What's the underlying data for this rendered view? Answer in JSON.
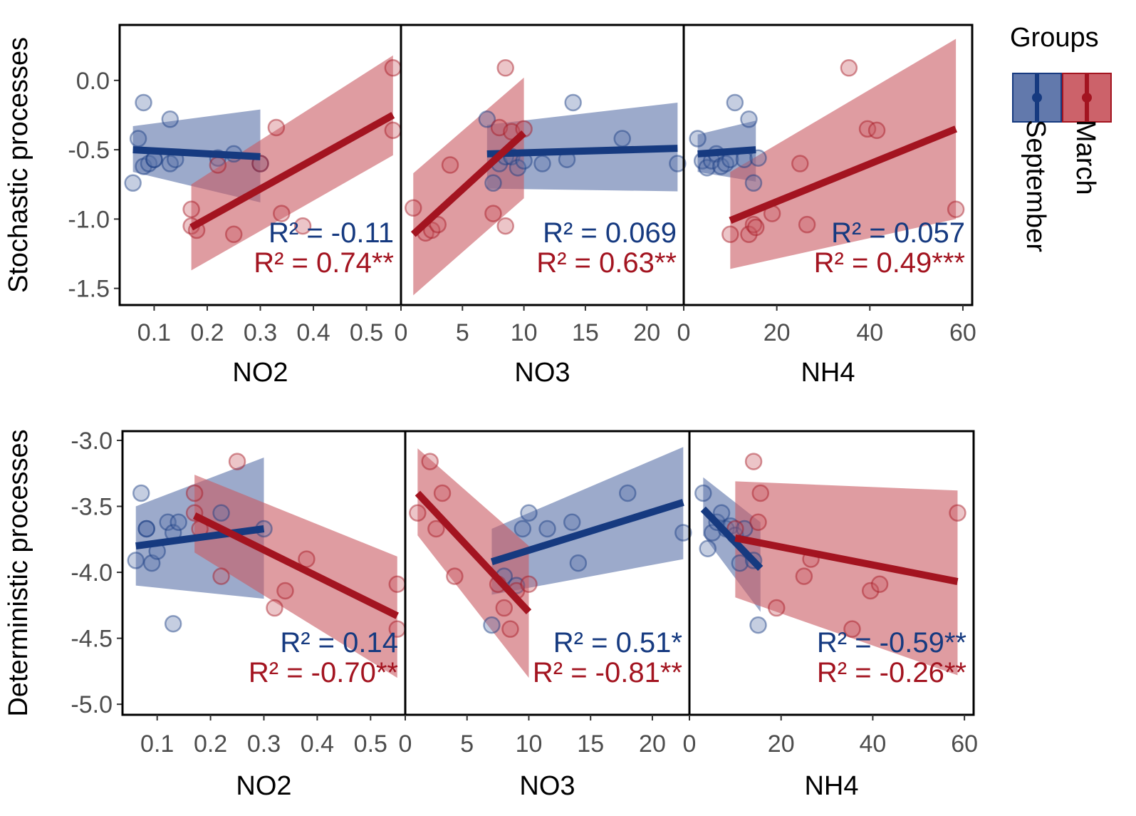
{
  "colors": {
    "September": "#163a80",
    "March": "#a31420",
    "September_fill": "#5a72a8",
    "March_fill": "#c95a62",
    "frame": "#000000"
  },
  "legend": {
    "title": "Groups",
    "entries": [
      "March",
      "September"
    ]
  },
  "chart_data": [
    {
      "type": "scatter",
      "ylabel": "Stochastic processes",
      "ylim": [
        -1.62,
        0.4
      ],
      "yticks": [
        0.0,
        -0.5,
        -1.0,
        -1.5
      ],
      "ytick_labels": [
        "0.0",
        "-0.5",
        "-1.0",
        "-1.5"
      ],
      "panels": [
        {
          "xlabel": "NO2",
          "xlim": [
            0.035,
            0.565
          ],
          "xticks": [
            0.1,
            0.2,
            0.3,
            0.4,
            0.5
          ],
          "xtick_labels": [
            "0.1",
            "0.2",
            "0.3",
            "0.4",
            "0.5"
          ],
          "series": [
            {
              "name": "September",
              "x": [
                0.06,
                0.07,
                0.08,
                0.08,
                0.09,
                0.1,
                0.1,
                0.13,
                0.13,
                0.14,
                0.22,
                0.25,
                0.3
              ],
              "y": [
                -0.74,
                -0.42,
                -0.62,
                -0.16,
                -0.6,
                -0.57,
                -0.57,
                -0.28,
                -0.6,
                -0.57,
                -0.56,
                -0.53,
                -0.6
              ],
              "fit": {
                "x": [
                  0.06,
                  0.3
                ],
                "y": [
                  -0.5,
                  -0.55
                ]
              },
              "band": {
                "x": [
                  0.06,
                  0.3
                ],
                "lower": [
                  -0.66,
                  -0.88
                ],
                "upper": [
                  -0.33,
                  -0.21
                ]
              }
            },
            {
              "name": "March",
              "x": [
                0.17,
                0.17,
                0.18,
                0.22,
                0.25,
                0.3,
                0.33,
                0.34,
                0.38,
                0.55,
                0.55
              ],
              "y": [
                -0.93,
                -1.05,
                -1.08,
                -0.61,
                -1.11,
                -0.6,
                -0.34,
                -0.96,
                -1.05,
                0.09,
                -0.36
              ],
              "fit": {
                "x": [
                  0.17,
                  0.55
                ],
                "y": [
                  -1.06,
                  -0.25
                ]
              },
              "band": {
                "x": [
                  0.17,
                  0.55
                ],
                "lower": [
                  -1.37,
                  -0.54
                ],
                "upper": [
                  -0.75,
                  0.18
                ]
              }
            }
          ],
          "r2": [
            {
              "group": "September",
              "text": "R² = -0.11"
            },
            {
              "group": "March",
              "text": "R² = 0.74**"
            }
          ]
        },
        {
          "xlabel": "NO3",
          "xlim": [
            0,
            23
          ],
          "xticks": [
            0,
            5,
            10,
            15,
            20
          ],
          "xtick_labels": [
            "0",
            "5",
            "10",
            "15",
            "20"
          ],
          "series": [
            {
              "name": "September",
              "x": [
                7,
                7.5,
                8,
                8.5,
                9,
                9.5,
                10,
                11.5,
                13.5,
                14,
                18,
                22.5
              ],
              "y": [
                -0.28,
                -0.74,
                -0.6,
                -0.55,
                -0.55,
                -0.63,
                -0.58,
                -0.6,
                -0.57,
                -0.16,
                -0.42,
                -0.6
              ],
              "fit": {
                "x": [
                  7,
                  22.5
                ],
                "y": [
                  -0.53,
                  -0.49
                ]
              },
              "band": {
                "x": [
                  7,
                  22.5
                ],
                "lower": [
                  -0.78,
                  -0.8
                ],
                "upper": [
                  -0.32,
                  -0.16
                ]
              }
            },
            {
              "name": "March",
              "x": [
                1,
                2,
                2.5,
                3,
                4,
                7.5,
                8,
                8.5,
                8.5,
                9,
                10
              ],
              "y": [
                -0.92,
                -1.1,
                -1.08,
                -1.04,
                -0.61,
                -0.96,
                -0.34,
                -1.05,
                0.09,
                -0.37,
                -0.35
              ],
              "fit": {
                "x": [
                  1,
                  10
                ],
                "y": [
                  -1.11,
                  -0.38
                ]
              },
              "band": {
                "x": [
                  1,
                  10
                ],
                "lower": [
                  -1.55,
                  -0.85
                ],
                "upper": [
                  -0.67,
                  0.02
                ]
              }
            }
          ],
          "r2": [
            {
              "group": "September",
              "text": "R² = 0.069"
            },
            {
              "group": "March",
              "text": "R² = 0.63**"
            }
          ]
        },
        {
          "xlabel": "NH4",
          "xlim": [
            0,
            62
          ],
          "xticks": [
            0,
            20,
            40,
            60
          ],
          "xtick_labels": [
            "0",
            "20",
            "40",
            "60"
          ],
          "series": [
            {
              "name": "September",
              "x": [
                3,
                4,
                5,
                6,
                7,
                8,
                9,
                10,
                11,
                13,
                14,
                15,
                16
              ],
              "y": [
                -0.42,
                -0.58,
                -0.63,
                -0.58,
                -0.53,
                -0.62,
                -0.6,
                -0.57,
                -0.16,
                -0.57,
                -0.28,
                -0.74,
                -0.56
              ],
              "fit": {
                "x": [
                  3,
                  15.5
                ],
                "y": [
                  -0.53,
                  -0.5
                ]
              },
              "band": {
                "x": [
                  3,
                  15.5
                ],
                "lower": [
                  -0.66,
                  -0.73
                ],
                "upper": [
                  -0.39,
                  -0.29
                ]
              }
            },
            {
              "name": "March",
              "x": [
                10,
                14,
                15,
                15.5,
                19,
                25,
                26.5,
                35.5,
                39.5,
                41.5,
                58.5
              ],
              "y": [
                -1.11,
                -1.11,
                -1.04,
                -1.06,
                -0.96,
                -0.6,
                -1.04,
                0.09,
                -0.35,
                -0.36,
                -0.93
              ],
              "fit": {
                "x": [
                  10,
                  58.5
                ],
                "y": [
                  -1.01,
                  -0.35
                ]
              },
              "band": {
                "x": [
                  10,
                  58.5
                ],
                "lower": [
                  -1.36,
                  -1.0
                ],
                "upper": [
                  -0.66,
                  0.3
                ]
              }
            }
          ],
          "r2": [
            {
              "group": "September",
              "text": "R² = 0.057"
            },
            {
              "group": "March",
              "text": "R² = 0.49***"
            }
          ]
        }
      ]
    },
    {
      "type": "scatter",
      "ylabel": "Deterministic processes",
      "ylim": [
        -5.08,
        -2.93
      ],
      "yticks": [
        -3.0,
        -3.5,
        -4.0,
        -4.5,
        -5.0
      ],
      "ytick_labels": [
        "-3.0",
        "-3.5",
        "-4.0",
        "-4.5",
        "-5.0"
      ],
      "panels": [
        {
          "xlabel": "NO2",
          "xlim": [
            0.035,
            0.565
          ],
          "xticks": [
            0.1,
            0.2,
            0.3,
            0.4,
            0.5
          ],
          "xtick_labels": [
            "0.1",
            "0.2",
            "0.3",
            "0.4",
            "0.5"
          ],
          "series": [
            {
              "name": "September",
              "x": [
                0.06,
                0.07,
                0.08,
                0.08,
                0.09,
                0.1,
                0.12,
                0.13,
                0.13,
                0.14,
                0.22,
                0.3
              ],
              "y": [
                -3.91,
                -3.4,
                -3.67,
                -3.67,
                -3.93,
                -3.84,
                -3.62,
                -4.39,
                -3.7,
                -3.62,
                -3.55,
                -3.67
              ],
              "fit": {
                "x": [
                  0.06,
                  0.3
                ],
                "y": [
                  -3.8,
                  -3.67
                ]
              },
              "band": {
                "x": [
                  0.06,
                  0.3
                ],
                "lower": [
                  -4.1,
                  -4.2
                ],
                "upper": [
                  -3.5,
                  -3.13
                ]
              }
            },
            {
              "name": "March",
              "x": [
                0.17,
                0.17,
                0.18,
                0.22,
                0.25,
                0.32,
                0.34,
                0.38,
                0.55,
                0.55
              ],
              "y": [
                -3.55,
                -3.4,
                -3.67,
                -4.03,
                -3.16,
                -4.27,
                -4.14,
                -3.9,
                -4.09,
                -4.43
              ],
              "fit": {
                "x": [
                  0.17,
                  0.55
                ],
                "y": [
                  -3.57,
                  -4.33
                ]
              },
              "band": {
                "x": [
                  0.17,
                  0.55
                ],
                "lower": [
                  -3.85,
                  -4.8
                ],
                "upper": [
                  -3.26,
                  -3.88
                ]
              }
            }
          ],
          "r2": [
            {
              "group": "September",
              "text": "R² = 0.14"
            },
            {
              "group": "March",
              "text": "R² = -0.70**"
            }
          ]
        },
        {
          "xlabel": "NO3",
          "xlim": [
            0,
            23
          ],
          "xticks": [
            0,
            5,
            10,
            15,
            20
          ],
          "xtick_labels": [
            "0",
            "5",
            "10",
            "15",
            "20"
          ],
          "series": [
            {
              "name": "September",
              "x": [
                7,
                8,
                9,
                9.5,
                10,
                11.5,
                13.5,
                14,
                18,
                22.5
              ],
              "y": [
                -4.4,
                -4.03,
                -4.1,
                -3.67,
                -3.55,
                -3.67,
                -3.62,
                -3.93,
                -3.4,
                -3.7
              ],
              "fit": {
                "x": [
                  7,
                  22.5
                ],
                "y": [
                  -3.92,
                  -3.47
                ]
              },
              "band": {
                "x": [
                  7,
                  22.5
                ],
                "lower": [
                  -4.17,
                  -3.9
                ],
                "upper": [
                  -3.67,
                  -3.05
                ]
              }
            },
            {
              "name": "March",
              "x": [
                1,
                2,
                2.5,
                3,
                4,
                7.5,
                8,
                8.5,
                9,
                10
              ],
              "y": [
                -3.55,
                -3.16,
                -3.67,
                -3.4,
                -4.03,
                -4.09,
                -4.27,
                -4.43,
                -4.14,
                -4.09
              ],
              "fit": {
                "x": [
                  1,
                  10
                ],
                "y": [
                  -3.4,
                  -4.3
                ]
              },
              "band": {
                "x": [
                  1,
                  10
                ],
                "lower": [
                  -3.72,
                  -4.8
                ],
                "upper": [
                  -3.06,
                  -3.8
                ]
              }
            }
          ],
          "r2": [
            {
              "group": "September",
              "text": "R² = 0.51*"
            },
            {
              "group": "March",
              "text": "R² = -0.81**"
            }
          ]
        },
        {
          "xlabel": "NH4",
          "xlim": [
            0,
            62
          ],
          "xticks": [
            0,
            20,
            40,
            60
          ],
          "xtick_labels": [
            "0",
            "20",
            "40",
            "60"
          ],
          "series": [
            {
              "name": "September",
              "x": [
                3,
                4,
                5,
                6,
                7,
                8,
                9,
                10,
                11,
                12,
                14,
                15
              ],
              "y": [
                -3.4,
                -3.82,
                -3.7,
                -3.62,
                -3.55,
                -3.67,
                -3.65,
                -3.72,
                -3.93,
                -3.67,
                -3.91,
                -4.4
              ],
              "fit": {
                "x": [
                  3,
                  15.5
                ],
                "y": [
                  -3.52,
                  -3.97
                ]
              },
              "band": {
                "x": [
                  3,
                  15.5
                ],
                "lower": [
                  -3.72,
                  -4.3
                ],
                "upper": [
                  -3.28,
                  -3.62
                ]
              }
            },
            {
              "name": "March",
              "x": [
                10,
                14,
                15,
                15.5,
                19,
                25,
                26.5,
                35.5,
                39.5,
                41.5,
                58.5
              ],
              "y": [
                -3.67,
                -3.16,
                -3.62,
                -3.4,
                -4.27,
                -4.03,
                -3.9,
                -4.43,
                -4.14,
                -4.09,
                -3.55
              ],
              "fit": {
                "x": [
                  10,
                  58.5
                ],
                "y": [
                  -3.74,
                  -4.07
                ]
              },
              "band": {
                "x": [
                  10,
                  58.5
                ],
                "lower": [
                  -4.19,
                  -4.78
                ],
                "upper": [
                  -3.31,
                  -3.38
                ]
              }
            }
          ],
          "r2": [
            {
              "group": "September",
              "text": "R² = -0.59**"
            },
            {
              "group": "March",
              "text": "R² = -0.26**"
            }
          ]
        }
      ]
    }
  ]
}
